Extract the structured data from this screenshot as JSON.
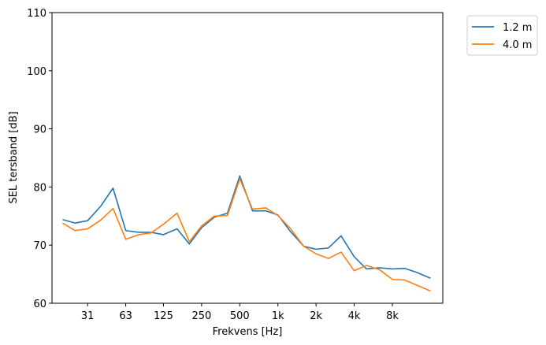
{
  "chart_data": {
    "type": "line",
    "xlabel": "Frekvens [Hz]",
    "ylabel": "SEL tersband [dB]",
    "xscale": "log",
    "ylim": [
      60,
      110
    ],
    "xlim": [
      16.5,
      20000
    ],
    "yticks": [
      60,
      70,
      80,
      90,
      100,
      110
    ],
    "xticks": [
      {
        "value": 31.5,
        "label": "31"
      },
      {
        "value": 63,
        "label": "63"
      },
      {
        "value": 125,
        "label": "125"
      },
      {
        "value": 250,
        "label": "250"
      },
      {
        "value": 500,
        "label": "500"
      },
      {
        "value": 1000,
        "label": "1k"
      },
      {
        "value": 2000,
        "label": "2k"
      },
      {
        "value": 4000,
        "label": "4k"
      },
      {
        "value": 8000,
        "label": "8k"
      }
    ],
    "grid": false,
    "legend_position": "outside-top-right",
    "x": [
      20,
      25,
      31.5,
      40,
      50,
      63,
      80,
      100,
      125,
      160,
      200,
      250,
      315,
      400,
      500,
      630,
      800,
      1000,
      1250,
      1600,
      2000,
      2500,
      3150,
      4000,
      5000,
      6300,
      8000,
      10000,
      12500,
      16000
    ],
    "series": [
      {
        "name": "1.2 m",
        "color": "#1f77b4",
        "values": [
          74.4,
          73.8,
          74.2,
          76.7,
          79.8,
          72.5,
          72.2,
          72.2,
          71.8,
          72.8,
          70.2,
          73.0,
          74.8,
          75.5,
          81.9,
          75.9,
          75.9,
          75.2,
          72.4,
          69.8,
          69.3,
          69.5,
          71.6,
          68.0,
          65.9,
          66.1,
          65.9,
          66.0,
          65.3,
          64.3
        ]
      },
      {
        "name": "4.0 m",
        "color": "#ff7f0e",
        "values": [
          73.8,
          72.5,
          72.8,
          74.3,
          76.3,
          71.0,
          71.8,
          72.1,
          73.6,
          75.5,
          70.6,
          73.3,
          75.0,
          75.1,
          81.4,
          76.2,
          76.4,
          75.1,
          72.9,
          69.8,
          68.5,
          67.7,
          68.8,
          65.6,
          66.5,
          65.8,
          64.1,
          64.0,
          63.1,
          62.1
        ]
      }
    ]
  }
}
